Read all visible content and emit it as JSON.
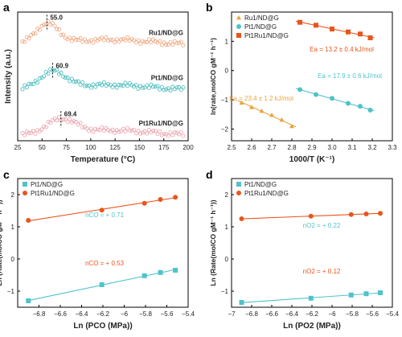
{
  "chart_data": [
    {
      "panel": "a",
      "type": "scatter",
      "xlabel": "Temperature (°C)",
      "ylabel": "Intensity (a.u.)",
      "xlim": [
        25,
        200
      ],
      "xticks": [
        25,
        50,
        75,
        100,
        125,
        150,
        175,
        200
      ],
      "series": [
        {
          "name": "Ru1/ND@G",
          "color": "#f0a27a",
          "peak_label": "55.0",
          "peak_x": 55.0,
          "offset": 2.0,
          "peak_height": 0.42,
          "width": 12
        },
        {
          "name": "Pt1/ND@G",
          "color": "#3db8b8",
          "peak_label": "60.9",
          "peak_x": 60.9,
          "offset": 1.05,
          "peak_height": 0.36,
          "width": 14
        },
        {
          "name": "Pt1Ru1/ND@G",
          "color": "#eaa0aa",
          "peak_label": "69.4",
          "peak_x": 69.4,
          "offset": 0.1,
          "peak_height": 0.3,
          "width": 15
        }
      ]
    },
    {
      "panel": "b",
      "type": "scatter",
      "xlabel": "1000/T (K⁻¹)",
      "ylabel": "ln(rate,molCO gM⁻¹ h⁻¹)",
      "xlim": [
        2.5,
        3.3
      ],
      "ylim": [
        -2.4,
        2.0
      ],
      "xticks": [
        2.5,
        2.6,
        2.7,
        2.8,
        2.9,
        3.0,
        3.1,
        3.2,
        3.3
      ],
      "legend": "top-left",
      "series": [
        {
          "name": "Ru1/ND@G",
          "color": "#e8a33e",
          "marker": "triangle",
          "x": [
            2.55,
            2.6,
            2.65,
            2.7,
            2.75,
            2.8
          ],
          "y": [
            -1.1,
            -1.25,
            -1.38,
            -1.52,
            -1.68,
            -1.9
          ],
          "annotation": "Ea = 23.4 ± 1.2 kJ/mol"
        },
        {
          "name": "Pt1/ND@G",
          "color": "#4fc3c9",
          "marker": "circle",
          "x": [
            2.84,
            2.92,
            3.0,
            3.08,
            3.14,
            3.19
          ],
          "y": [
            -0.65,
            -0.82,
            -0.95,
            -1.12,
            -1.22,
            -1.35
          ],
          "annotation": "Ea = 17.9 ± 0.6 kJ/mol"
        },
        {
          "name": "Pt1Ru1/ND@G",
          "color": "#e8551c",
          "marker": "square",
          "x": [
            2.84,
            2.92,
            3.0,
            3.08,
            3.14,
            3.19
          ],
          "y": [
            1.65,
            1.55,
            1.42,
            1.32,
            1.25,
            1.12
          ],
          "annotation": "Ea = 13.2 ± 0.4 kJ/mol"
        }
      ]
    },
    {
      "panel": "c",
      "type": "scatter",
      "xlabel": "Ln (PCO (MPa))",
      "ylabel": "Ln (Rate(molCO gM⁻¹ h⁻¹))",
      "xlim": [
        -7.0,
        -5.4
      ],
      "ylim": [
        -1.5,
        2.5
      ],
      "xticks": [
        -6.8,
        -6.6,
        -6.4,
        -6.2,
        -6.0,
        -5.8,
        -5.6,
        -5.4
      ],
      "yticks": [
        -1,
        0,
        1,
        2
      ],
      "legend": "top-left",
      "series": [
        {
          "name": "Pt1/ND@G",
          "color": "#4fc3c9",
          "marker": "square",
          "x": [
            -6.9,
            -6.21,
            -5.81,
            -5.66,
            -5.52
          ],
          "y": [
            -1.3,
            -0.8,
            -0.52,
            -0.42,
            -0.35
          ],
          "annotation": "nCO = + 0.71"
        },
        {
          "name": "Pt1Ru1/ND@G",
          "color": "#e8551c",
          "marker": "circle",
          "x": [
            -6.9,
            -6.21,
            -5.81,
            -5.66,
            -5.52
          ],
          "y": [
            1.2,
            1.52,
            1.73,
            1.85,
            1.92
          ],
          "annotation": "nCO = + 0.53"
        }
      ]
    },
    {
      "panel": "d",
      "type": "scatter",
      "xlabel": "Ln (PO2 (MPa))",
      "ylabel": "Ln (Rate(molCO gM⁻¹ h⁻¹))",
      "xlim": [
        -7.0,
        -5.4
      ],
      "ylim": [
        -1.5,
        2.5
      ],
      "xticks": [
        -7.0,
        -6.8,
        -6.6,
        -6.4,
        -6.2,
        -6.0,
        -5.8,
        -5.6,
        -5.4
      ],
      "yticks": [
        -1,
        0,
        1,
        2
      ],
      "legend": "top-left",
      "series": [
        {
          "name": "Pt1/ND@G",
          "color": "#4fc3c9",
          "marker": "square",
          "x": [
            -6.9,
            -6.21,
            -5.81,
            -5.66,
            -5.52
          ],
          "y": [
            -1.35,
            -1.22,
            -1.12,
            -1.08,
            -1.05
          ],
          "annotation": "nO2 = + 0.22"
        },
        {
          "name": "Pt1Ru1/ND@G",
          "color": "#e8551c",
          "marker": "circle",
          "x": [
            -6.9,
            -6.21,
            -5.81,
            -5.66,
            -5.52
          ],
          "y": [
            1.25,
            1.33,
            1.38,
            1.4,
            1.42
          ],
          "annotation": "nO2 = + 0.12"
        }
      ]
    }
  ]
}
